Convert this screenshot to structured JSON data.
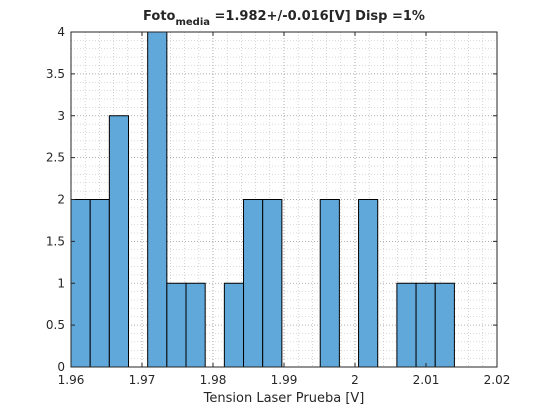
{
  "chart_data": {
    "type": "bar",
    "title": {
      "main": "Foto",
      "subscript": "media",
      "rest": " =1.982+/-0.016[V] Disp =1%"
    },
    "xlabel": "Tension Laser Prueba [V]",
    "ylabel": "",
    "xlim": [
      1.96,
      2.02
    ],
    "ylim": [
      0,
      4
    ],
    "xticks": [
      1.96,
      1.97,
      1.98,
      1.99,
      2.0,
      2.01,
      2.02
    ],
    "xtick_labels": [
      "1.96",
      "1.97",
      "1.98",
      "1.99",
      "2",
      "2.01",
      "2.02"
    ],
    "yticks": [
      0,
      0.5,
      1,
      1.5,
      2,
      2.5,
      3,
      3.5,
      4
    ],
    "ytick_labels": [
      "0",
      "0.5",
      "1",
      "1.5",
      "2",
      "2.5",
      "3",
      "3.5",
      "4"
    ],
    "grid": "on (dotted, with minor grid)",
    "bin_width": 0.0027,
    "bins": [
      {
        "start": 1.96,
        "end": 1.9627,
        "count": 2
      },
      {
        "start": 1.9627,
        "end": 1.9654,
        "count": 2
      },
      {
        "start": 1.9654,
        "end": 1.9681,
        "count": 3
      },
      {
        "start": 1.9681,
        "end": 1.9708,
        "count": 0
      },
      {
        "start": 1.9708,
        "end": 1.9735,
        "count": 4
      },
      {
        "start": 1.9735,
        "end": 1.9762,
        "count": 1
      },
      {
        "start": 1.9762,
        "end": 1.9789,
        "count": 1
      },
      {
        "start": 1.9789,
        "end": 1.9816,
        "count": 0
      },
      {
        "start": 1.9816,
        "end": 1.9843,
        "count": 1
      },
      {
        "start": 1.9843,
        "end": 1.987,
        "count": 2
      },
      {
        "start": 1.987,
        "end": 1.9897,
        "count": 2
      },
      {
        "start": 1.9897,
        "end": 1.9924,
        "count": 0
      },
      {
        "start": 1.9924,
        "end": 1.9951,
        "count": 0
      },
      {
        "start": 1.9951,
        "end": 1.9978,
        "count": 2
      },
      {
        "start": 1.9978,
        "end": 2.0005,
        "count": 0
      },
      {
        "start": 2.0005,
        "end": 2.0032,
        "count": 2
      },
      {
        "start": 2.0032,
        "end": 2.0059,
        "count": 0
      },
      {
        "start": 2.0059,
        "end": 2.0086,
        "count": 1
      },
      {
        "start": 2.0086,
        "end": 2.0113,
        "count": 1
      },
      {
        "start": 2.0113,
        "end": 2.014,
        "count": 1
      }
    ],
    "colors": {
      "bar_fill": "#61a8da",
      "bar_edge": "#000000",
      "axis": "#262626",
      "grid": "#b8b8b8"
    }
  }
}
